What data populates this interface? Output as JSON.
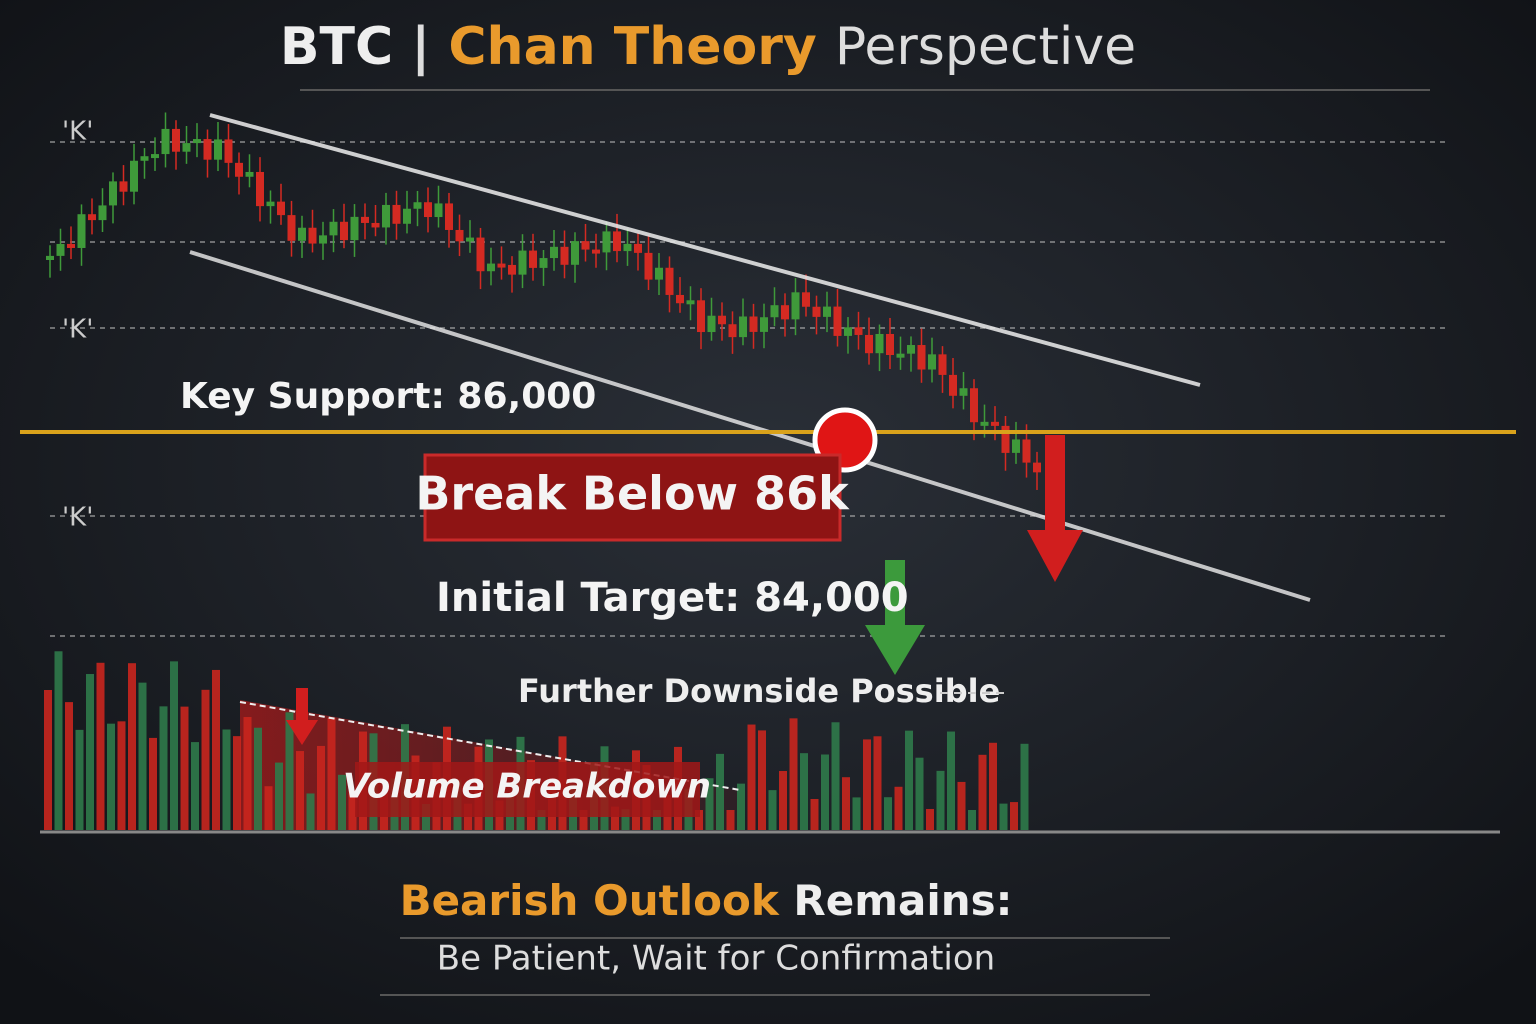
{
  "header": {
    "ticker": "BTC",
    "separator": "|",
    "highlight": "Chan Theory",
    "rest": "Perspective"
  },
  "axis_labels": [
    "'K'",
    "'K'",
    "'K'"
  ],
  "support": {
    "label": "Key Support:",
    "value": "86,000"
  },
  "break_label": "Break Below 86k",
  "target": {
    "label": "Initial Target:",
    "value": "84,000"
  },
  "downside_note": "Further Downside Possible",
  "volume_label": "Volume Breakdown",
  "footer": {
    "highlight": "Bearish Outlook",
    "rest": "Remains:",
    "advice": "Be Patient, Wait for Confirmation"
  }
}
